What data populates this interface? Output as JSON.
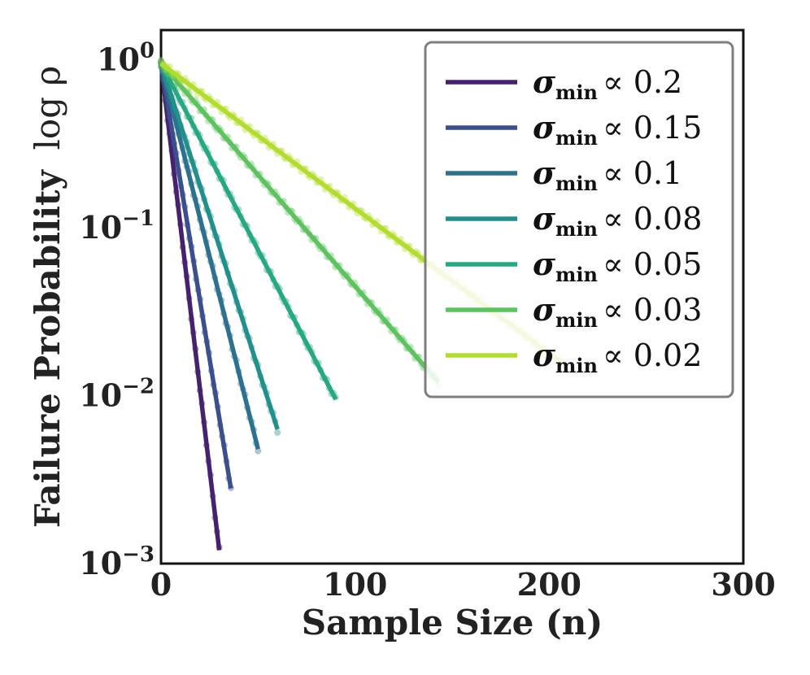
{
  "chart_data": {
    "type": "line",
    "title": "",
    "xlabel": "Sample Size (n)",
    "ylabel": {
      "main": "Failure Probability",
      "math": "log ρ"
    },
    "xlim": [
      0,
      300
    ],
    "ylim": [
      0.001,
      1.5
    ],
    "yscale": "log",
    "grid": false,
    "legend_position": "top-right",
    "x_ticks": [
      {
        "value": 0,
        "label": "0"
      },
      {
        "value": 100,
        "label": "100"
      },
      {
        "value": 200,
        "label": "200"
      },
      {
        "value": 300,
        "label": "300"
      }
    ],
    "y_ticks": [
      {
        "value": 1,
        "base": "10",
        "exp": "0"
      },
      {
        "value": 0.1,
        "base": "10",
        "exp": "−1"
      },
      {
        "value": 0.01,
        "base": "10",
        "exp": "−2"
      },
      {
        "value": 0.001,
        "base": "10",
        "exp": "−3"
      }
    ],
    "legend_symbol": "σ",
    "legend_subscript": "min",
    "legend_relation": "∝",
    "series": [
      {
        "name": "0.2",
        "color": "#46226e",
        "x": [
          0,
          30
        ],
        "y": [
          0.95,
          0.0012
        ]
      },
      {
        "name": "0.15",
        "color": "#3b4f8c",
        "x": [
          0,
          36
        ],
        "y": [
          0.95,
          0.0028
        ]
      },
      {
        "name": "0.1",
        "color": "#2c718e",
        "x": [
          0,
          50
        ],
        "y": [
          0.95,
          0.0048
        ]
      },
      {
        "name": "0.08",
        "color": "#21908d",
        "x": [
          0,
          60
        ],
        "y": [
          0.95,
          0.0063
        ]
      },
      {
        "name": "0.05",
        "color": "#26a980",
        "x": [
          0,
          90
        ],
        "y": [
          0.95,
          0.0095
        ]
      },
      {
        "name": "0.03",
        "color": "#5cc35f",
        "x": [
          0,
          143
        ],
        "y": [
          0.95,
          0.012
        ]
      },
      {
        "name": "0.02",
        "color": "#b2dd2d",
        "x": [
          0,
          207
        ],
        "y": [
          0.95,
          0.0155
        ]
      }
    ]
  }
}
